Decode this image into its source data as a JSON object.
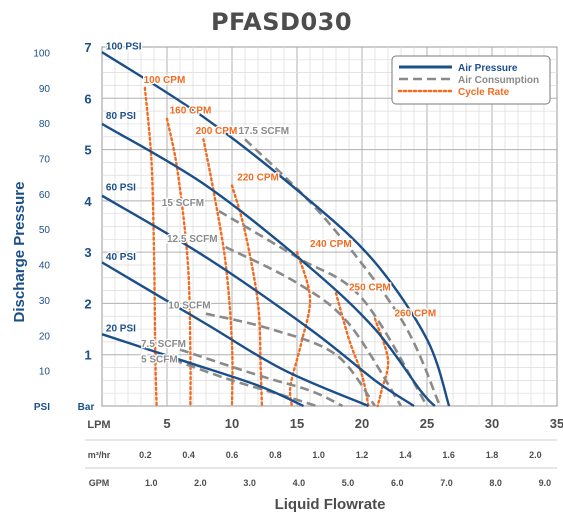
{
  "chart_data": {
    "type": "line",
    "title": "PFASD030",
    "xlabel": "Liquid Flowrate",
    "ylabel": "Discharge Pressure",
    "x_unit_primary": "LPM",
    "y_unit_psi": "PSI",
    "y_unit_bar": "Bar",
    "xlim_lpm": [
      0,
      35
    ],
    "ylim_bar": [
      0,
      7
    ],
    "grid": true,
    "legend_position": "top-right",
    "colors": {
      "air_pressure": "#1b4f8a",
      "air_consumption": "#8a8a8a",
      "cycle_rate": "#f26b21",
      "axis_text": "#1b4f8a"
    },
    "legend": [
      {
        "label": "Air Pressure",
        "style": "solid",
        "color": "#1b4f8a"
      },
      {
        "label": "Air Consumption",
        "style": "dashed",
        "color": "#8a8a8a"
      },
      {
        "label": "Cycle Rate",
        "style": "dotted",
        "color": "#f26b21"
      }
    ],
    "x_ticks_lpm": [
      {
        "value": 5,
        "label": "5"
      },
      {
        "value": 10,
        "label": "10"
      },
      {
        "value": 15,
        "label": "15"
      },
      {
        "value": 20,
        "label": "20"
      },
      {
        "value": 25,
        "label": "25"
      },
      {
        "value": 30,
        "label": "30"
      },
      {
        "value": 35,
        "label": "35"
      }
    ],
    "x_ticks_m3hr": [
      {
        "value": 0.2,
        "label": "0.2"
      },
      {
        "value": 0.4,
        "label": "0.4"
      },
      {
        "value": 0.6,
        "label": "0.6"
      },
      {
        "value": 0.8,
        "label": "0.8"
      },
      {
        "value": 1.0,
        "label": "1.0"
      },
      {
        "value": 1.2,
        "label": "1.2"
      },
      {
        "value": 1.4,
        "label": "1.4"
      },
      {
        "value": 1.6,
        "label": "1.6"
      },
      {
        "value": 1.8,
        "label": "1.8"
      },
      {
        "value": 2.0,
        "label": "2.0"
      }
    ],
    "x_unit_m3hr": "m³/hr",
    "x_ticks_gpm": [
      {
        "value": 1.0,
        "label": "1.0"
      },
      {
        "value": 2.0,
        "label": "2.0"
      },
      {
        "value": 3.0,
        "label": "3.0"
      },
      {
        "value": 4.0,
        "label": "4.0"
      },
      {
        "value": 5.0,
        "label": "5.0"
      },
      {
        "value": 6.0,
        "label": "6.0"
      },
      {
        "value": 7.0,
        "label": "7.0"
      },
      {
        "value": 8.0,
        "label": "8.0"
      },
      {
        "value": 9.0,
        "label": "9.0"
      }
    ],
    "x_unit_gpm": "GPM",
    "y_ticks_bar": [
      {
        "value": 1,
        "label": "1"
      },
      {
        "value": 2,
        "label": "2"
      },
      {
        "value": 3,
        "label": "3"
      },
      {
        "value": 4,
        "label": "4"
      },
      {
        "value": 5,
        "label": "5"
      },
      {
        "value": 6,
        "label": "6"
      },
      {
        "value": 7,
        "label": "7"
      }
    ],
    "y_ticks_psi": [
      {
        "value": 10,
        "label": "10"
      },
      {
        "value": 20,
        "label": "20"
      },
      {
        "value": 30,
        "label": "30"
      },
      {
        "value": 40,
        "label": "40"
      },
      {
        "value": 50,
        "label": "50"
      },
      {
        "value": 60,
        "label": "60"
      },
      {
        "value": 70,
        "label": "70"
      },
      {
        "value": 80,
        "label": "80"
      },
      {
        "value": 90,
        "label": "90"
      },
      {
        "value": 100,
        "label": "100"
      }
    ],
    "air_pressure_series": [
      {
        "name": "100 PSI",
        "points": [
          [
            0,
            6.9
          ],
          [
            8,
            5.6
          ],
          [
            16,
            4.0
          ],
          [
            21,
            2.8
          ],
          [
            25,
            1.3
          ],
          [
            26.7,
            0
          ]
        ]
      },
      {
        "name": "80 PSI",
        "points": [
          [
            0,
            5.5
          ],
          [
            8,
            4.3
          ],
          [
            16,
            2.7
          ],
          [
            21,
            1.5
          ],
          [
            24.5,
            0.3
          ],
          [
            25.6,
            0
          ]
        ]
      },
      {
        "name": "60 PSI",
        "points": [
          [
            0,
            4.1
          ],
          [
            8,
            2.9
          ],
          [
            16,
            1.5
          ],
          [
            21,
            0.5
          ],
          [
            24,
            0
          ]
        ]
      },
      {
        "name": "40 PSI",
        "points": [
          [
            0,
            2.8
          ],
          [
            8,
            1.6
          ],
          [
            14,
            0.7
          ],
          [
            20.5,
            0
          ]
        ]
      },
      {
        "name": "20 PSI",
        "points": [
          [
            0,
            1.4
          ],
          [
            6,
            0.9
          ],
          [
            12,
            0.4
          ],
          [
            15.5,
            0
          ]
        ]
      }
    ],
    "air_consumption_series": [
      {
        "name": "17.5 SCFM",
        "points": [
          [
            11,
            5.2
          ],
          [
            17,
            3.7
          ],
          [
            23,
            1.7
          ],
          [
            26,
            0
          ]
        ]
      },
      {
        "name": "15 SCFM",
        "points": [
          [
            9,
            3.8
          ],
          [
            15,
            2.9
          ],
          [
            20,
            2.1
          ],
          [
            25,
            0
          ]
        ]
      },
      {
        "name": "12.5 SCFM",
        "points": [
          [
            9.5,
            3.1
          ],
          [
            15,
            2.4
          ],
          [
            19,
            1.6
          ],
          [
            23,
            0
          ]
        ]
      },
      {
        "name": "10 SCFM",
        "points": [
          [
            8,
            1.8
          ],
          [
            13,
            1.5
          ],
          [
            18,
            1.0
          ],
          [
            21,
            0
          ]
        ]
      },
      {
        "name": "7.5 SCFM",
        "points": [
          [
            6,
            1.1
          ],
          [
            12,
            0.6
          ],
          [
            16,
            0.3
          ],
          [
            18.5,
            0
          ]
        ]
      },
      {
        "name": "5 SCFM",
        "points": [
          [
            5.5,
            0.9
          ],
          [
            10,
            0.5
          ],
          [
            14,
            0.2
          ],
          [
            16.5,
            0
          ]
        ]
      }
    ],
    "cycle_rate_series": [
      {
        "name": "100 CPM",
        "points": [
          [
            3.3,
            6.2
          ],
          [
            3.8,
            4.8
          ],
          [
            4.0,
            3.0
          ],
          [
            4.1,
            1.0
          ],
          [
            4.2,
            0
          ]
        ]
      },
      {
        "name": "160 CPM",
        "points": [
          [
            5.0,
            5.6
          ],
          [
            5.8,
            4.6
          ],
          [
            6.6,
            2.8
          ],
          [
            6.8,
            1.0
          ],
          [
            6.8,
            0
          ]
        ]
      },
      {
        "name": "200 CPM",
        "points": [
          [
            7.8,
            5.2
          ],
          [
            8.5,
            4.3
          ],
          [
            9.5,
            2.8
          ],
          [
            10.0,
            1.2
          ],
          [
            10.0,
            0
          ]
        ]
      },
      {
        "name": "220 CPM",
        "points": [
          [
            10.0,
            4.3
          ],
          [
            11.0,
            3.4
          ],
          [
            12.0,
            2.0
          ],
          [
            12.2,
            0.8
          ],
          [
            12.3,
            0
          ]
        ]
      },
      {
        "name": "240 CPM",
        "points": [
          [
            15.0,
            3.0
          ],
          [
            16.0,
            2.1
          ],
          [
            15.3,
            1.2
          ],
          [
            14.5,
            0.4
          ],
          [
            14.6,
            0
          ]
        ]
      },
      {
        "name": "250 CPM",
        "points": [
          [
            18.0,
            2.2
          ],
          [
            19.0,
            1.3
          ],
          [
            20.0,
            0.6
          ],
          [
            20.5,
            0
          ]
        ]
      },
      {
        "name": "260 CPM",
        "points": [
          [
            21.0,
            1.7
          ],
          [
            22.0,
            0.9
          ],
          [
            21.5,
            0.3
          ],
          [
            21.2,
            0
          ]
        ]
      }
    ],
    "labels": {
      "air_pressure": [
        {
          "text": "100 PSI",
          "x": 0.3,
          "y": 6.95
        },
        {
          "text": "80 PSI",
          "x": 0.3,
          "y": 5.6
        },
        {
          "text": "60 PSI",
          "x": 0.3,
          "y": 4.2
        },
        {
          "text": "40 PSI",
          "x": 0.3,
          "y": 2.85
        },
        {
          "text": "20 PSI",
          "x": 0.3,
          "y": 1.45
        }
      ],
      "air_consumption": [
        {
          "text": "17.5 SCFM",
          "x": 10.5,
          "y": 5.3
        },
        {
          "text": "15 SCFM",
          "x": 4.6,
          "y": 3.9
        },
        {
          "text": "12.5 SCFM",
          "x": 5.0,
          "y": 3.2
        },
        {
          "text": "10 SCFM",
          "x": 5.1,
          "y": 1.9
        },
        {
          "text": "7.5 SCFM",
          "x": 3.0,
          "y": 1.15
        },
        {
          "text": "5 SCFM",
          "x": 3.0,
          "y": 0.85
        }
      ],
      "cycle_rate": [
        {
          "text": "100 CPM",
          "x": 3.2,
          "y": 6.3
        },
        {
          "text": "160 CPM",
          "x": 5.2,
          "y": 5.7
        },
        {
          "text": "200 CPM",
          "x": 7.2,
          "y": 5.3
        },
        {
          "text": "220 CPM",
          "x": 10.4,
          "y": 4.4
        },
        {
          "text": "240 CPM",
          "x": 16.0,
          "y": 3.1
        },
        {
          "text": "250 CPM",
          "x": 19.0,
          "y": 2.25
        },
        {
          "text": "260 CPM",
          "x": 22.5,
          "y": 1.75
        }
      ]
    }
  }
}
